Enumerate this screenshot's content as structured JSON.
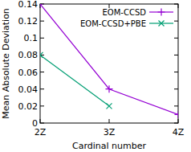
{
  "chart_data": {
    "type": "line",
    "x_label": "Cardinal number",
    "y_label": "Mean Absolute Deviation",
    "categories": [
      "2Z",
      "3Z",
      "4Z"
    ],
    "series": [
      {
        "name": "EOM-CCSD",
        "color": "#9400d3",
        "marker": "plus",
        "values": [
          0.14,
          0.04,
          0.01
        ]
      },
      {
        "name": "EOM-CCSD+PBE",
        "color": "#009e73",
        "marker": "cross",
        "values": [
          0.08,
          0.02,
          null
        ]
      }
    ],
    "ylim": [
      0,
      0.14
    ],
    "yticks": [
      0,
      0.02,
      0.04,
      0.06,
      0.08,
      0.1,
      0.12,
      0.14
    ],
    "grid": false,
    "legend": "top-right"
  }
}
